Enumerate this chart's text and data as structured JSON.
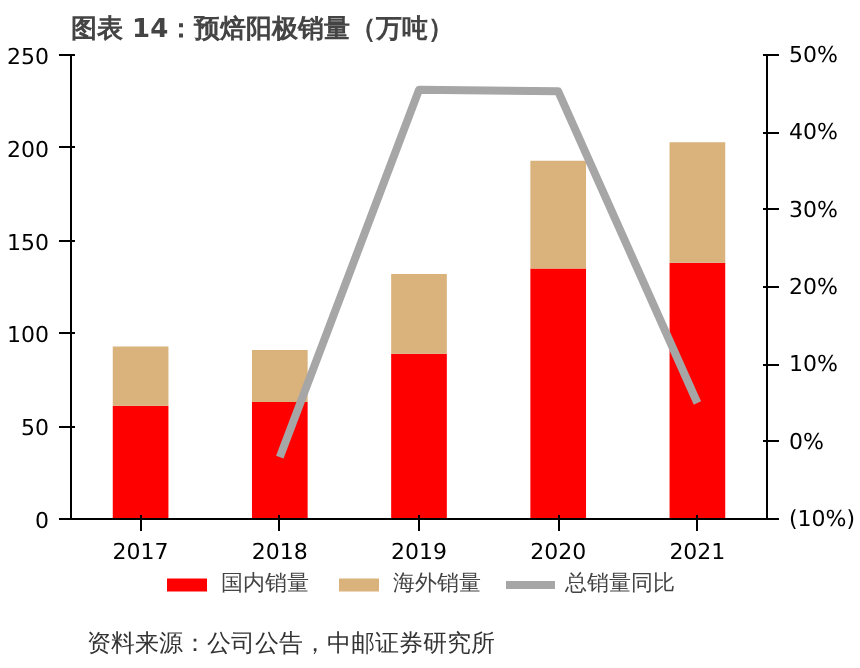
{
  "chart_data": {
    "type": "bar",
    "title": "图表 14：预焙阳极销量（万吨）",
    "categories": [
      "2017",
      "2018",
      "2019",
      "2020",
      "2021"
    ],
    "stacked": true,
    "series": [
      {
        "name": "国内销量",
        "color": "#ff0000",
        "values": [
          61,
          63,
          89,
          135,
          138
        ]
      },
      {
        "name": "海外销量",
        "color": "#d9b27c",
        "values": [
          32,
          28,
          43,
          58,
          65
        ]
      },
      {
        "name": "总销量同比",
        "type": "line",
        "axis": "y2",
        "color": "#a6a6a6",
        "values": [
          null,
          -2,
          45.5,
          45.3,
          5
        ]
      }
    ],
    "ylim": [
      0,
      250
    ],
    "yticks": [
      0,
      50,
      100,
      150,
      200,
      250
    ],
    "y2lim": [
      -10,
      50
    ],
    "y2ticks": [
      {
        "value": -10,
        "label": "(10%)"
      },
      {
        "value": 0,
        "label": "0%"
      },
      {
        "value": 10,
        "label": "10%"
      },
      {
        "value": 20,
        "label": "20%"
      },
      {
        "value": 30,
        "label": "30%"
      },
      {
        "value": 40,
        "label": "40%"
      },
      {
        "value": 50,
        "label": "50%"
      }
    ],
    "grid": false,
    "legend": "bottom",
    "marker": "none",
    "line_style": "solid",
    "annotations": [
      "资料来源：公司公告，中邮证券研究所"
    ]
  }
}
